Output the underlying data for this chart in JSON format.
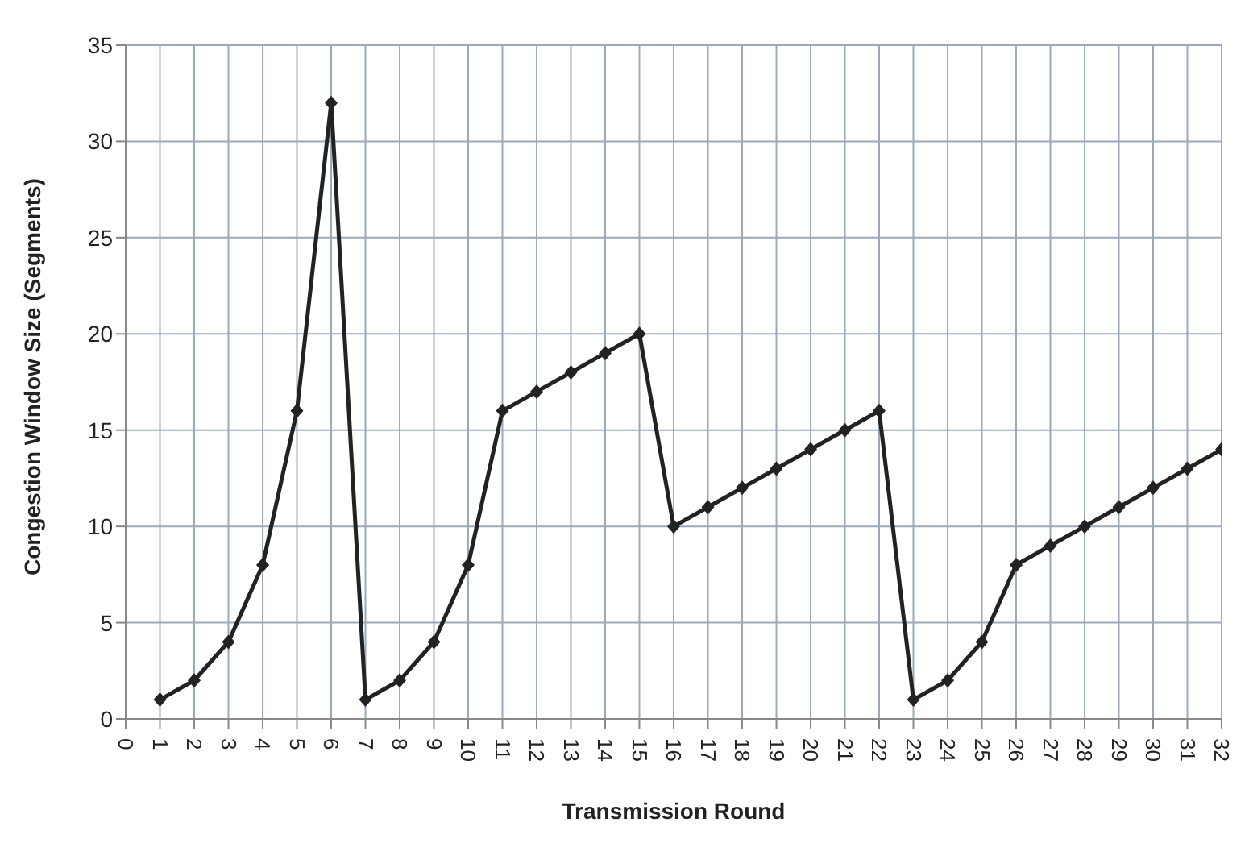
{
  "chart_data": {
    "type": "line",
    "xlabel": "Transmission Round",
    "ylabel": "Congestion Window Size (Segments)",
    "x": [
      1,
      2,
      3,
      4,
      5,
      6,
      7,
      8,
      9,
      10,
      11,
      12,
      13,
      14,
      15,
      16,
      17,
      18,
      19,
      20,
      21,
      22,
      23,
      24,
      25,
      26,
      27,
      28,
      29,
      30,
      31,
      32
    ],
    "series": [
      {
        "color": "#222222",
        "values": [
          1,
          2,
          4,
          8,
          16,
          32,
          1,
          2,
          4,
          8,
          16,
          17,
          18,
          19,
          20,
          10,
          11,
          12,
          13,
          14,
          15,
          16,
          1,
          2,
          4,
          8,
          9,
          10,
          11,
          12,
          13,
          14
        ]
      }
    ],
    "xlim": [
      0,
      32
    ],
    "xticks": [
      0,
      1,
      2,
      3,
      4,
      5,
      6,
      7,
      8,
      9,
      10,
      11,
      12,
      13,
      14,
      15,
      16,
      17,
      18,
      19,
      20,
      21,
      22,
      23,
      24,
      25,
      26,
      27,
      28,
      29,
      30,
      31,
      32
    ],
    "ylim": [
      0,
      35
    ],
    "yticks": [
      0,
      5,
      10,
      15,
      20,
      25,
      30,
      35
    ],
    "grid": true,
    "marker": "diamond",
    "line_style": "solid",
    "legend": false
  }
}
